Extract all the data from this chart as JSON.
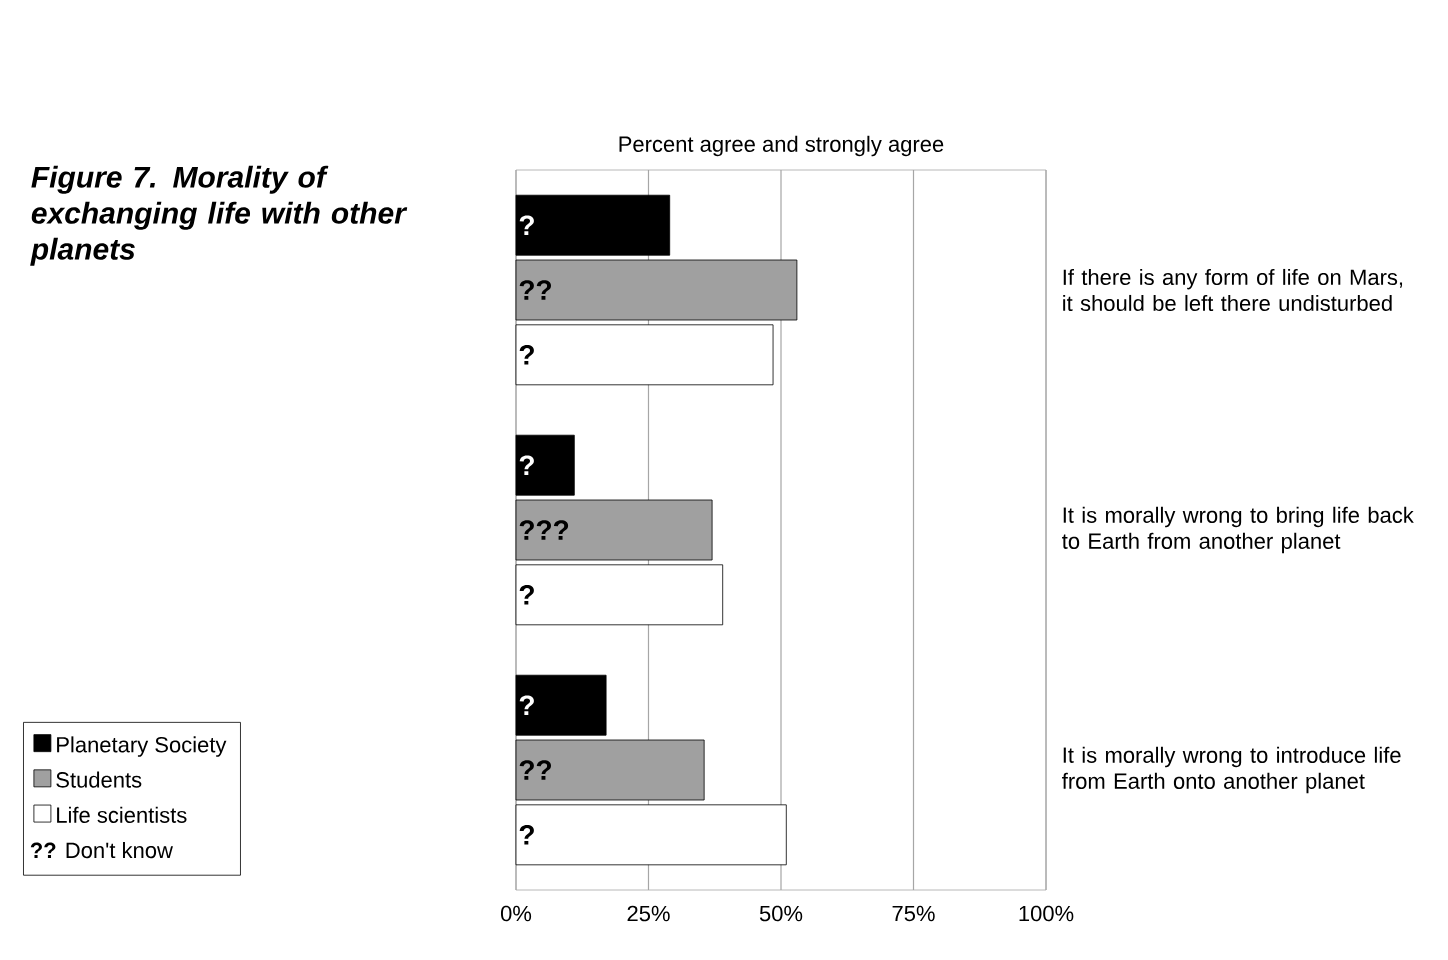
{
  "chart_data": {
    "type": "bar",
    "orientation": "horizontal",
    "title": "Figure 7. Morality of exchanging life with other planets",
    "xlabel": "Percent agree and strongly agree",
    "categories": [
      "If there is any form of life on Mars, it should be left there undisturbed",
      "It is morally wrong to bring life back to Earth from another planet",
      "It is morally wrong to introduce life from Earth onto another planet"
    ],
    "series": [
      {
        "name": "Planetary Society",
        "color": "#000000",
        "values": [
          29,
          11,
          17
        ],
        "value_labels": [
          "?",
          "?",
          "?"
        ]
      },
      {
        "name": "Students",
        "color": "#a0a0a0",
        "values": [
          53,
          37,
          35.5
        ],
        "value_labels": [
          "??",
          "???",
          "??"
        ]
      },
      {
        "name": "Life scientists",
        "color": "#ffffff",
        "values": [
          48.5,
          39,
          51
        ],
        "value_labels": [
          "?",
          "?",
          "?"
        ]
      }
    ],
    "xlim": [
      0,
      100
    ],
    "xticks": [
      {
        "value": 0,
        "label": "0%"
      },
      {
        "value": 25,
        "label": "25%"
      },
      {
        "value": 50,
        "label": "50%"
      },
      {
        "value": 75,
        "label": "75%"
      },
      {
        "value": 100,
        "label": "100%"
      }
    ],
    "grid": "x",
    "legend": "bottom left",
    "annotations": [
      "**??** Don't know"
    ]
  }
}
